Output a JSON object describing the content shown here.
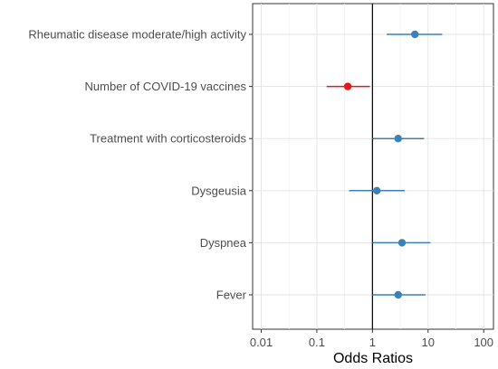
{
  "chart_data": {
    "type": "scatter",
    "title": "",
    "xlabel": "Odds Ratios",
    "ylabel": "",
    "x_scale": "log10",
    "xlim": [
      0.007,
      150
    ],
    "x_ticks": [
      0.01,
      0.1,
      1,
      10,
      100
    ],
    "x_tick_labels": [
      "0.01",
      "0.1",
      "1",
      "10",
      "100"
    ],
    "reference_line": 1,
    "grid": true,
    "categories": [
      "Rheumatic disease moderate/high activity",
      "Number of COVID-19 vaccines",
      "Treatment with corticosteroids",
      "Dysgeusia",
      "Dyspnea",
      "Fever"
    ],
    "estimates": [
      5.8,
      0.36,
      2.9,
      1.2,
      3.4,
      2.9
    ],
    "ci_lower": [
      1.8,
      0.15,
      1.0,
      0.38,
      1.0,
      1.0
    ],
    "ci_upper": [
      18,
      0.9,
      8.5,
      3.8,
      11,
      9
    ],
    "point_colors": [
      "#3a80b9",
      "#e31a1c",
      "#3a80b9",
      "#3a80b9",
      "#3a80b9",
      "#3a80b9"
    ]
  }
}
